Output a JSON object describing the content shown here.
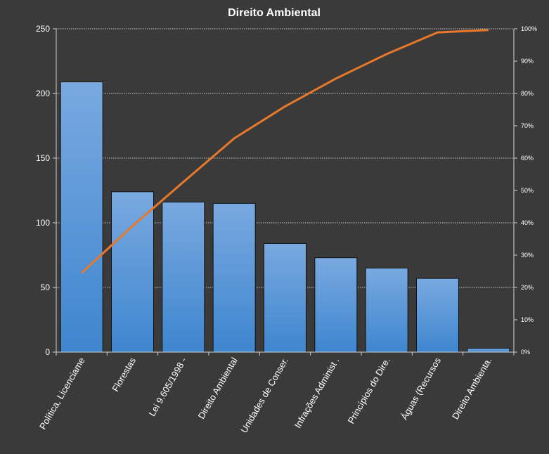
{
  "chart_data": {
    "type": "bar",
    "title": "Direito  Ambiental",
    "categories": [
      "Política, Licenciame",
      "Florestas",
      "Lei 9.605/1998 -",
      "Direito Ambiental",
      "Unidades de Conser.",
      "Infrações Administ .",
      "Princípios do Dire.",
      "Águas (Recursos",
      "Direito Ambienta."
    ],
    "series": [
      {
        "type": "bar",
        "values": [
          209,
          124,
          116,
          115,
          84,
          73,
          65,
          57,
          3
        ]
      },
      {
        "type": "line",
        "values": [
          24.5,
          39.0,
          52.6,
          66.1,
          76.0,
          84.6,
          92.2,
          98.9,
          99.6
        ]
      }
    ],
    "ylim": [
      0,
      250
    ],
    "y_ticks": [
      "0",
      "50",
      "100",
      "150",
      "200",
      "250"
    ],
    "y2lim": [
      0,
      100
    ],
    "y2_ticks": [
      "0%",
      "10%",
      "20%",
      "30%",
      "40%",
      "50%",
      "60%",
      "70%",
      "80%",
      "90%",
      "100%"
    ],
    "grid": true,
    "legend": "none",
    "colors": {
      "background": "#3a3a3a",
      "bar_top": "#79a9e0",
      "bar_bottom": "#3e86cf",
      "line": "#e8782a",
      "grid": "#c8c8c8",
      "axis": "#d0d0d0",
      "text": "#ffffff"
    }
  }
}
